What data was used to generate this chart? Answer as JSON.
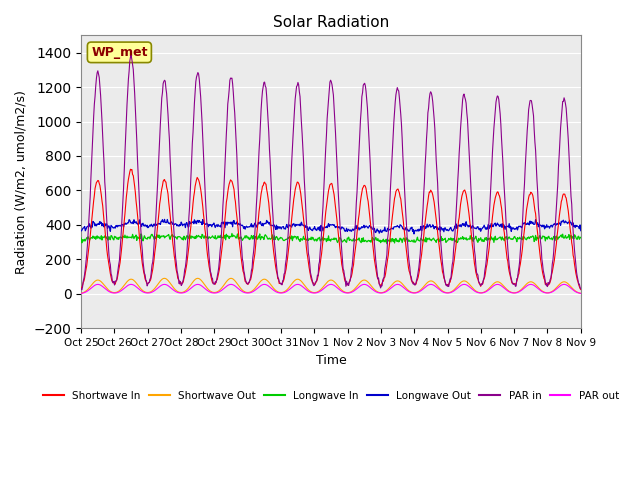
{
  "title": "Solar Radiation",
  "xlabel": "Time",
  "ylabel": "Radiation (W/m2, umol/m2/s)",
  "ylim": [
    -200,
    1500
  ],
  "yticks": [
    -200,
    0,
    200,
    400,
    600,
    800,
    1000,
    1200,
    1400
  ],
  "x_tick_labels": [
    "Oct 25",
    "Oct 26",
    "Oct 27",
    "Oct 28",
    "Oct 29",
    "Oct 30",
    "Oct 31",
    "Nov 1",
    "Nov 2",
    "Nov 3",
    "Nov 4",
    "Nov 5",
    "Nov 6",
    "Nov 7",
    "Nov 8",
    "Nov 9"
  ],
  "n_days": 15,
  "annotation_text": "WP_met",
  "annotation_color": "#8B0000",
  "annotation_bg": "#FFFF99",
  "colors": {
    "shortwave_in": "#FF0000",
    "shortwave_out": "#FFA500",
    "longwave_in": "#00CC00",
    "longwave_out": "#0000CC",
    "par_in": "#8B008B",
    "par_out": "#FF00FF"
  },
  "legend_labels": [
    "Shortwave In",
    "Shortwave Out",
    "Longwave In",
    "Longwave Out",
    "PAR in",
    "PAR out"
  ],
  "background_color": "#EBEBEB",
  "grid_color": "#FFFFFF",
  "shortwave_in_peaks": [
    660,
    720,
    660,
    670,
    660,
    650,
    645,
    640,
    630,
    610,
    600,
    600,
    590,
    590,
    580
  ],
  "shortwave_out_peaks": [
    80,
    85,
    90,
    90,
    90,
    85,
    85,
    80,
    80,
    75,
    75,
    75,
    70,
    70,
    70
  ],
  "longwave_in_base": 305,
  "longwave_out_base": 355,
  "par_in_peaks": [
    1290,
    1380,
    1240,
    1280,
    1260,
    1230,
    1225,
    1235,
    1225,
    1200,
    1170,
    1155,
    1150,
    1130,
    1130
  ],
  "par_out_peaks": [
    55,
    55,
    55,
    55,
    55,
    55,
    55,
    55,
    55,
    55,
    55,
    55,
    55,
    55,
    55
  ]
}
